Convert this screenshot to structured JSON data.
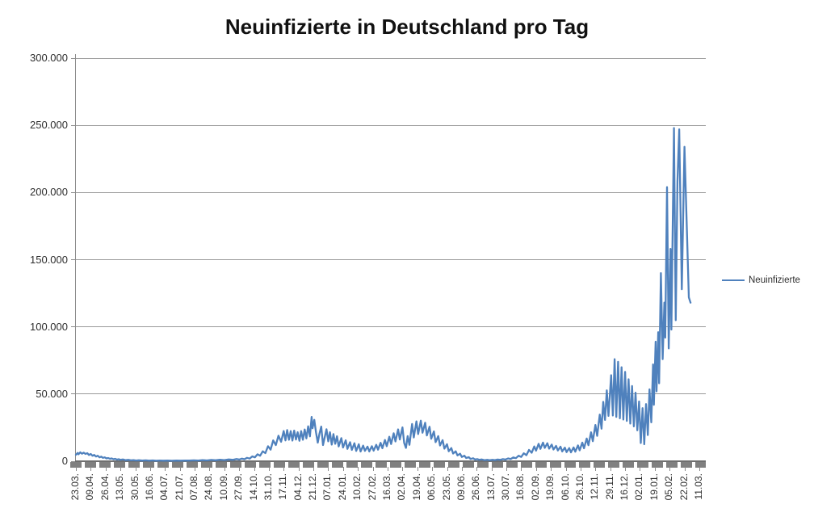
{
  "title": "Neuinfizierte in Deutschland pro Tag",
  "legend": {
    "label": "Neuinfizierte"
  },
  "colors": {
    "series": "#4F81BD",
    "gridline": "#9a9a9a",
    "axis": "#6f6f6f",
    "dash_band": "#808080",
    "text": "#2e2e2e"
  },
  "chart_data": {
    "type": "line",
    "title": "Neuinfizierte in Deutschland pro Tag",
    "xlabel": "",
    "ylabel": "",
    "ylim": [
      0,
      300000
    ],
    "grid": true,
    "legend_position": "right",
    "y_ticks": [
      0,
      50000,
      100000,
      150000,
      200000,
      250000,
      300000
    ],
    "y_tick_labels": [
      "0",
      "50.000",
      "100.000",
      "150.000",
      "200.000",
      "250.000",
      "300.000"
    ],
    "x_tick_interval_days": 17,
    "x_tick_labels": [
      "23.03.",
      "09.04.",
      "26.04.",
      "13.05.",
      "30.05.",
      "16.06.",
      "04.07.",
      "21.07.",
      "07.08.",
      "24.08.",
      "10.09.",
      "27.09.",
      "14.10.",
      "31.10.",
      "17.11.",
      "04.12.",
      "21.12.",
      "07.01.",
      "24.01.",
      "10.02.",
      "27.02.",
      "16.03.",
      "02.04.",
      "19.04.",
      "06.05.",
      "23.05.",
      "09.06.",
      "26.06.",
      "13.07.",
      "30.07.",
      "16.08.",
      "02.09.",
      "19.09.",
      "06.10.",
      "26.10.",
      "12.11.",
      "29.11.",
      "16.12.",
      "02.01.",
      "19.01.",
      "05.02.",
      "22.02.",
      "11.03."
    ],
    "series": [
      {
        "name": "Neuinfizierte",
        "color": "#4F81BD",
        "points": [
          [
            0,
            4800
          ],
          [
            2,
            6200
          ],
          [
            3,
            5200
          ],
          [
            5,
            6600
          ],
          [
            7,
            5600
          ],
          [
            9,
            6400
          ],
          [
            11,
            5400
          ],
          [
            13,
            6000
          ],
          [
            15,
            4600
          ],
          [
            17,
            5400
          ],
          [
            19,
            4100
          ],
          [
            21,
            4700
          ],
          [
            23,
            3500
          ],
          [
            25,
            4100
          ],
          [
            27,
            2900
          ],
          [
            29,
            3400
          ],
          [
            31,
            2500
          ],
          [
            33,
            2900
          ],
          [
            35,
            2100
          ],
          [
            37,
            2400
          ],
          [
            39,
            1800
          ],
          [
            41,
            2100
          ],
          [
            43,
            1500
          ],
          [
            45,
            1800
          ],
          [
            47,
            1200
          ],
          [
            49,
            1500
          ],
          [
            51,
            1000
          ],
          [
            54,
            1300
          ],
          [
            57,
            800
          ],
          [
            60,
            1000
          ],
          [
            63,
            650
          ],
          [
            66,
            850
          ],
          [
            69,
            550
          ],
          [
            72,
            750
          ],
          [
            76,
            480
          ],
          [
            80,
            650
          ],
          [
            84,
            420
          ],
          [
            88,
            580
          ],
          [
            92,
            380
          ],
          [
            96,
            520
          ],
          [
            100,
            400
          ],
          [
            105,
            480
          ],
          [
            110,
            380
          ],
          [
            115,
            500
          ],
          [
            120,
            420
          ],
          [
            125,
            560
          ],
          [
            130,
            480
          ],
          [
            135,
            640
          ],
          [
            140,
            540
          ],
          [
            145,
            760
          ],
          [
            150,
            600
          ],
          [
            155,
            950
          ],
          [
            160,
            720
          ],
          [
            165,
            1150
          ],
          [
            170,
            850
          ],
          [
            175,
            1350
          ],
          [
            180,
            1020
          ],
          [
            184,
            1600
          ],
          [
            187,
            1250
          ],
          [
            190,
            1900
          ],
          [
            193,
            1500
          ],
          [
            196,
            2500
          ],
          [
            199,
            2000
          ],
          [
            202,
            3600
          ],
          [
            205,
            2900
          ],
          [
            208,
            5200
          ],
          [
            211,
            4100
          ],
          [
            214,
            7400
          ],
          [
            217,
            6000
          ],
          [
            220,
            11200
          ],
          [
            223,
            8600
          ],
          [
            226,
            15500
          ],
          [
            229,
            12000
          ],
          [
            232,
            19000
          ],
          [
            235,
            14500
          ],
          [
            238,
            22500
          ],
          [
            240,
            15500
          ],
          [
            242,
            23200
          ],
          [
            244,
            16000
          ],
          [
            246,
            22400
          ],
          [
            248,
            15400
          ],
          [
            250,
            22800
          ],
          [
            252,
            16200
          ],
          [
            254,
            21600
          ],
          [
            256,
            15200
          ],
          [
            258,
            22400
          ],
          [
            260,
            16000
          ],
          [
            262,
            23600
          ],
          [
            264,
            17000
          ],
          [
            266,
            26000
          ],
          [
            268,
            18500
          ],
          [
            270,
            33000
          ],
          [
            271,
            24500
          ],
          [
            273,
            30800
          ],
          [
            275,
            21500
          ],
          [
            277,
            13800
          ],
          [
            279,
            20500
          ],
          [
            281,
            25800
          ],
          [
            283,
            12000
          ],
          [
            285,
            17800
          ],
          [
            287,
            23800
          ],
          [
            289,
            14800
          ],
          [
            291,
            21600
          ],
          [
            293,
            12400
          ],
          [
            295,
            20200
          ],
          [
            297,
            13000
          ],
          [
            299,
            18600
          ],
          [
            301,
            11000
          ],
          [
            304,
            17200
          ],
          [
            306,
            10200
          ],
          [
            309,
            15600
          ],
          [
            311,
            9200
          ],
          [
            314,
            14200
          ],
          [
            316,
            8400
          ],
          [
            319,
            13400
          ],
          [
            321,
            7700
          ],
          [
            324,
            12600
          ],
          [
            326,
            7200
          ],
          [
            329,
            11600
          ],
          [
            331,
            7700
          ],
          [
            334,
            10900
          ],
          [
            336,
            7300
          ],
          [
            339,
            11200
          ],
          [
            341,
            7900
          ],
          [
            344,
            12200
          ],
          [
            346,
            8600
          ],
          [
            349,
            13700
          ],
          [
            351,
            9700
          ],
          [
            354,
            15800
          ],
          [
            356,
            11200
          ],
          [
            359,
            18200
          ],
          [
            361,
            12800
          ],
          [
            364,
            20800
          ],
          [
            366,
            14700
          ],
          [
            369,
            23700
          ],
          [
            371,
            16200
          ],
          [
            374,
            25200
          ],
          [
            376,
            13600
          ],
          [
            378,
            9900
          ],
          [
            380,
            18700
          ],
          [
            382,
            12200
          ],
          [
            385,
            27700
          ],
          [
            387,
            17700
          ],
          [
            390,
            29700
          ],
          [
            392,
            20200
          ],
          [
            395,
            30200
          ],
          [
            397,
            21200
          ],
          [
            400,
            28700
          ],
          [
            402,
            19200
          ],
          [
            405,
            25700
          ],
          [
            407,
            16700
          ],
          [
            410,
            22200
          ],
          [
            412,
            14200
          ],
          [
            415,
            18700
          ],
          [
            417,
            11700
          ],
          [
            420,
            15700
          ],
          [
            422,
            9400
          ],
          [
            425,
            12700
          ],
          [
            427,
            7400
          ],
          [
            430,
            9800
          ],
          [
            432,
            5700
          ],
          [
            435,
            7400
          ],
          [
            437,
            4300
          ],
          [
            440,
            5600
          ],
          [
            442,
            3200
          ],
          [
            445,
            4100
          ],
          [
            447,
            2400
          ],
          [
            450,
            3000
          ],
          [
            452,
            1700
          ],
          [
            455,
            2200
          ],
          [
            457,
            1300
          ],
          [
            460,
            1550
          ],
          [
            462,
            1000
          ],
          [
            465,
            1300
          ],
          [
            468,
            800
          ],
          [
            471,
            1100
          ],
          [
            474,
            720
          ],
          [
            477,
            1000
          ],
          [
            480,
            840
          ],
          [
            483,
            1250
          ],
          [
            486,
            1000
          ],
          [
            489,
            1550
          ],
          [
            492,
            1250
          ],
          [
            495,
            2100
          ],
          [
            498,
            1700
          ],
          [
            501,
            2800
          ],
          [
            504,
            2300
          ],
          [
            507,
            4100
          ],
          [
            510,
            3200
          ],
          [
            513,
            5900
          ],
          [
            516,
            4500
          ],
          [
            519,
            8400
          ],
          [
            522,
            6300
          ],
          [
            525,
            11000
          ],
          [
            527,
            7900
          ],
          [
            530,
            13000
          ],
          [
            532,
            9200
          ],
          [
            535,
            13900
          ],
          [
            537,
            9900
          ],
          [
            540,
            13400
          ],
          [
            542,
            9400
          ],
          [
            545,
            12400
          ],
          [
            547,
            8700
          ],
          [
            550,
            11400
          ],
          [
            552,
            8000
          ],
          [
            555,
            10800
          ],
          [
            557,
            7300
          ],
          [
            560,
            10100
          ],
          [
            562,
            6800
          ],
          [
            565,
            9800
          ],
          [
            567,
            6600
          ],
          [
            570,
            10300
          ],
          [
            572,
            7100
          ],
          [
            575,
            11800
          ],
          [
            577,
            8100
          ],
          [
            580,
            13900
          ],
          [
            582,
            9600
          ],
          [
            585,
            16900
          ],
          [
            587,
            11900
          ],
          [
            590,
            21500
          ],
          [
            592,
            14900
          ],
          [
            595,
            27000
          ],
          [
            597,
            18900
          ],
          [
            600,
            34700
          ],
          [
            602,
            24200
          ],
          [
            604,
            44200
          ],
          [
            606,
            30700
          ],
          [
            608,
            52700
          ],
          [
            610,
            33700
          ],
          [
            613,
            64000
          ],
          [
            615,
            34000
          ],
          [
            617,
            76000
          ],
          [
            619,
            33000
          ],
          [
            621,
            74000
          ],
          [
            623,
            32000
          ],
          [
            625,
            70000
          ],
          [
            627,
            31000
          ],
          [
            629,
            66500
          ],
          [
            631,
            30000
          ],
          [
            633,
            61000
          ],
          [
            635,
            28000
          ],
          [
            637,
            56000
          ],
          [
            639,
            26000
          ],
          [
            641,
            51000
          ],
          [
            643,
            23000
          ],
          [
            645,
            44500
          ],
          [
            647,
            13500
          ],
          [
            649,
            39500
          ],
          [
            651,
            12600
          ],
          [
            653,
            42500
          ],
          [
            655,
            19500
          ],
          [
            657,
            53500
          ],
          [
            659,
            29000
          ],
          [
            661,
            72000
          ],
          [
            662,
            42000
          ],
          [
            664,
            89000
          ],
          [
            665,
            52000
          ],
          [
            667,
            96000
          ],
          [
            668,
            58000
          ],
          [
            670,
            140000
          ],
          [
            672,
            76000
          ],
          [
            674,
            118000
          ],
          [
            675,
            92000
          ],
          [
            677,
            204000
          ],
          [
            679,
            84000
          ],
          [
            681,
            158000
          ],
          [
            682,
            98000
          ],
          [
            685,
            248000
          ],
          [
            687,
            105000
          ],
          [
            689,
            208000
          ],
          [
            691,
            247000
          ],
          [
            694,
            128000
          ],
          [
            697,
            234000
          ],
          [
            700,
            168000
          ],
          [
            702,
            122000
          ],
          [
            704,
            118000
          ]
        ]
      }
    ]
  }
}
